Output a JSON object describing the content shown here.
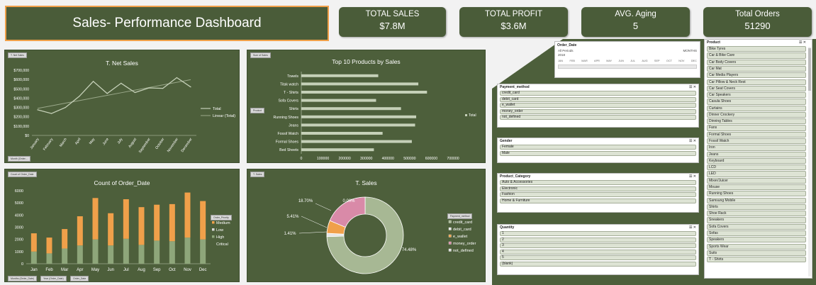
{
  "dashboard": {
    "title": "Sales- Performance Dashboard"
  },
  "kpis": [
    {
      "label": "TOTAL SALES",
      "value": "$7.8M"
    },
    {
      "label": "TOTAL PROFIT",
      "value": "$3.6M"
    },
    {
      "label": "AVG. Aging",
      "value": "5"
    },
    {
      "label": "Total Orders",
      "value": "51290"
    }
  ],
  "tags": {
    "net_sales": "T. Net Sales",
    "net_sales_bottom": "Month (Order...",
    "top10": "Sum of Sales",
    "top10_filter": "Product",
    "orders": "Count of Order_Date",
    "orders_legend_filter": "Order_Priority",
    "orders_bottom_1": "Months (Order_Date)",
    "orders_bottom_2": "Year (Order_Date)",
    "orders_bottom_3": "Order_Date",
    "tsales": "T. Sales",
    "tsales_legend_filter": "Payment_method"
  },
  "colors": {
    "panel": "#4d5f3b",
    "line": "#c5d0b8",
    "bar": "#c5d0b8",
    "medium": "#f0a04a",
    "high": "#8ea67a",
    "pie_main": "#a7b894",
    "pie_pink": "#d98aa8",
    "pie_orange": "#f0a04a"
  },
  "chart_data": [
    {
      "type": "line",
      "title": "T. Net Sales",
      "categories": [
        "January",
        "February",
        "March",
        "April",
        "May",
        "June",
        "July",
        "August",
        "September",
        "October",
        "November",
        "December"
      ],
      "series": [
        {
          "name": "Total",
          "values": [
            275000,
            235000,
            300000,
            420000,
            580000,
            450000,
            560000,
            460000,
            510000,
            505000,
            620000,
            520000
          ]
        },
        {
          "name": "Linear (Total)",
          "values": [
            290000,
            318000,
            346000,
            374000,
            402000,
            430000,
            458000,
            486000,
            514000,
            542000,
            570000,
            598000
          ]
        }
      ],
      "yticks": [
        "$0",
        "$100,000",
        "$200,000",
        "$300,000",
        "$400,000",
        "$500,000",
        "$600,000",
        "$700,000"
      ],
      "ylim": [
        0,
        700000
      ]
    },
    {
      "type": "bar",
      "title": "Top 10 Products by Sales",
      "categories": [
        "Towels",
        "Titak watch",
        "T - Shirts",
        "Sofa Covers",
        "Shirts",
        "Running Shoes",
        "Jeans",
        "Fossil Watch",
        "Formal Shoes",
        "Bed Sheets"
      ],
      "values": [
        355000,
        540000,
        580000,
        345000,
        460000,
        530000,
        525000,
        375000,
        510000,
        335000
      ],
      "series_name": "Total",
      "xticks": [
        "0",
        "100000",
        "200000",
        "300000",
        "400000",
        "500000",
        "600000",
        "700000"
      ],
      "xlim": [
        0,
        700000
      ]
    },
    {
      "type": "bar",
      "title": "Count of Order_Date",
      "categories": [
        "Jan",
        "Feb",
        "Mar",
        "Apr",
        "May",
        "Jun",
        "Jul",
        "Aug",
        "Sep",
        "Oct",
        "Nov",
        "Dec"
      ],
      "series": [
        {
          "name": "High",
          "values": [
            1000,
            850,
            1250,
            1500,
            2000,
            1500,
            2050,
            1550,
            1900,
            1850,
            2150,
            2000
          ]
        },
        {
          "name": "Medium",
          "values": [
            1500,
            1300,
            1600,
            2400,
            3400,
            2650,
            3250,
            3100,
            2950,
            3050,
            3700,
            3150
          ]
        }
      ],
      "legend": [
        "Medium",
        "Low",
        "High",
        "Critical"
      ],
      "yticks": [
        "0",
        "1000",
        "2000",
        "3000",
        "4000",
        "5000",
        "6000"
      ],
      "ylim": [
        0,
        6000
      ]
    },
    {
      "type": "pie",
      "title": "T. Sales",
      "slices": [
        {
          "name": "credit_card",
          "value": 74.48,
          "label": "74.48%"
        },
        {
          "name": "debit_card",
          "value": 1.41,
          "label": "1.41%"
        },
        {
          "name": "e_wallet",
          "value": 5.41,
          "label": "5.41%"
        },
        {
          "name": "money_order",
          "value": 18.7,
          "label": "18.70%"
        },
        {
          "name": "not_defined",
          "value": 0.0,
          "label": "0.00%"
        }
      ]
    }
  ],
  "timeline": {
    "title": "Order_Date",
    "all_periods": "All Periods",
    "level": "MONTHS",
    "year": "2018",
    "months": [
      "JAN",
      "FEB",
      "MAR",
      "APR",
      "MAY",
      "JUN",
      "JUL",
      "AUG",
      "SEP",
      "OCT",
      "NOV",
      "DEC"
    ]
  },
  "slicers": {
    "payment": {
      "title": "Payment_method",
      "items": [
        "credit_card",
        "debit_card",
        "e_wallet",
        "money_order",
        "not_defined"
      ]
    },
    "gender": {
      "title": "Gender",
      "items": [
        "Female",
        "Male"
      ]
    },
    "category": {
      "title": "Product_Category",
      "items": [
        "Auto & Accessories",
        "Electronic",
        "Fashion",
        "Home & Furniture"
      ]
    },
    "quantity": {
      "title": "Quantity",
      "items": [
        "1",
        "2",
        "3",
        "4",
        "5",
        "(blank)"
      ]
    },
    "product": {
      "title": "Product",
      "items": [
        "Bike Tyres",
        "Car & Bike Care",
        "Car Body Covers",
        "Car Mat",
        "Car Media Players",
        "Car Pillow & Neck Rest",
        "Car Seat Covers",
        "Car Speakers",
        "Casula Shoes",
        "Curtains",
        "Dinner Crockery",
        "Dinning Tables",
        "Fans",
        "Formal Shoes",
        "Fossil Watch",
        "Iron",
        "Jeans",
        "Keyboard",
        "LCD",
        "LED",
        "Mixer/Juicer",
        "Mouse",
        "Running Shoes",
        "Samsung Mobile",
        "Shirts",
        "Shoe Rack",
        "Sneakers",
        "Sofa Covers",
        "Sofas",
        "Speakers",
        "Sports Wear",
        "Suits",
        "T - Shirts"
      ]
    }
  }
}
